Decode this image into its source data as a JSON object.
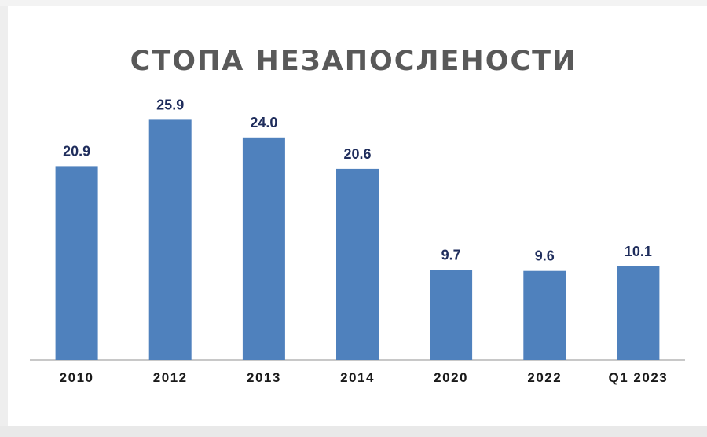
{
  "chart_data": {
    "type": "bar",
    "title": "СТОПА НЕЗАПОСЛЕНОСТИ",
    "categories": [
      "2010",
      "2012",
      "2013",
      "2014",
      "2020",
      "2022",
      "Q1 2023"
    ],
    "values": [
      20.9,
      25.9,
      24.0,
      20.6,
      9.7,
      9.6,
      10.1
    ],
    "value_labels": [
      "20.9",
      "25.9",
      "24.0",
      "20.6",
      "9.7",
      "9.6",
      "10.1"
    ],
    "ylim": [
      0,
      26
    ],
    "grid": false,
    "legend": "none",
    "colors": {
      "bar": "#4f81bd",
      "title": "#595959",
      "value_label": "#1f2d5c",
      "axis": "#a6a6a6"
    }
  }
}
